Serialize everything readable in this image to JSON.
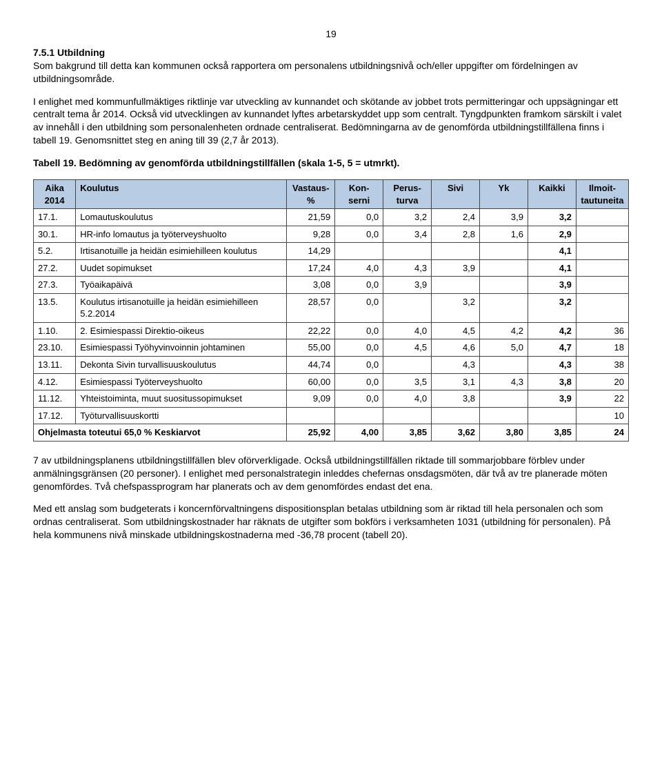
{
  "page_number": "19",
  "section_heading": "7.5.1 Utbildning",
  "para1": "Som bakgrund till detta kan kommunen också rapportera om personalens utbildningsnivå och/eller uppgifter om fördelningen av utbildningsområde.",
  "para2": "I enlighet med kommunfullmäktiges riktlinje var utveckling av kunnandet och skötande av jobbet trots permitteringar och uppsägningar ett centralt tema år 2014. Också vid utvecklingen av kunnandet lyftes arbetarskyddet upp som centralt. Tyngdpunkten framkom särskilt i valet av innehåll i den utbildning som personalenheten ordnade centraliserat. Bedömningarna av de genomförda utbildningstillfällena finns i tabell 19. Genomsnittet steg en aning till 39 (2,7 år 2013).",
  "table_caption": "Tabell 19. Bedömning av genomförda utbildningstillfällen (skala 1-5, 5 = utmrkt).",
  "headers": {
    "aika": "Aika 2014",
    "koulutus": "Koulutus",
    "vastaus": "Vastaus-%",
    "konserni": "Kon-serni",
    "perusturva": "Perus-turva",
    "sivi": "Sivi",
    "yk": "Yk",
    "kaikki": "Kaikki",
    "ilmoit": "Ilmoit-tautuneita"
  },
  "rows": [
    {
      "aika": "17.1.",
      "koulutus": "Lomautuskoulutus",
      "vastaus": "21,59",
      "konserni": "0,0",
      "perusturva": "3,2",
      "sivi": "2,4",
      "yk": "3,9",
      "kaikki": "3,2",
      "ilmoit": ""
    },
    {
      "aika": "30.1.",
      "koulutus": "HR-info lomautus ja työterveyshuolto",
      "vastaus": "9,28",
      "konserni": "0,0",
      "perusturva": "3,4",
      "sivi": "2,8",
      "yk": "1,6",
      "kaikki": "2,9",
      "ilmoit": ""
    },
    {
      "aika": "5.2.",
      "koulutus": "Irtisanotuille ja heidän esimiehilleen koulutus",
      "vastaus": "14,29",
      "konserni": "",
      "perusturva": "",
      "sivi": "",
      "yk": "",
      "kaikki": "4,1",
      "ilmoit": ""
    },
    {
      "aika": "27.2.",
      "koulutus": "Uudet sopimukset",
      "vastaus": "17,24",
      "konserni": "4,0",
      "perusturva": "4,3",
      "sivi": "3,9",
      "yk": "",
      "kaikki": "4,1",
      "ilmoit": ""
    },
    {
      "aika": "27.3.",
      "koulutus": "Työaikapäivä",
      "vastaus": "3,08",
      "konserni": "0,0",
      "perusturva": "3,9",
      "sivi": "",
      "yk": "",
      "kaikki": "3,9",
      "ilmoit": ""
    },
    {
      "aika": "13.5.",
      "koulutus": "Koulutus irtisanotuille ja heidän esimiehilleen 5.2.2014",
      "vastaus": "28,57",
      "konserni": "0,0",
      "perusturva": "",
      "sivi": "3,2",
      "yk": "",
      "kaikki": "3,2",
      "ilmoit": ""
    },
    {
      "aika": "1.10.",
      "koulutus": "2. Esimiespassi Direktio-oikeus",
      "vastaus": "22,22",
      "konserni": "0,0",
      "perusturva": "4,0",
      "sivi": "4,5",
      "yk": "4,2",
      "kaikki": "4,2",
      "ilmoit": "36"
    },
    {
      "aika": "23.10.",
      "koulutus": "Esimiespassi Työhyvinvoinnin johtaminen",
      "vastaus": "55,00",
      "konserni": "0,0",
      "perusturva": "4,5",
      "sivi": "4,6",
      "yk": "5,0",
      "kaikki": "4,7",
      "ilmoit": "18"
    },
    {
      "aika": "13.11.",
      "koulutus": "Dekonta Sivin turvallisuuskoulutus",
      "vastaus": "44,74",
      "konserni": "0,0",
      "perusturva": "",
      "sivi": "4,3",
      "yk": "",
      "kaikki": "4,3",
      "ilmoit": "38"
    },
    {
      "aika": "4.12.",
      "koulutus": "Esimiespassi Työterveyshuolto",
      "vastaus": "60,00",
      "konserni": "0,0",
      "perusturva": "3,5",
      "sivi": "3,1",
      "yk": "4,3",
      "kaikki": "3,8",
      "ilmoit": "20"
    },
    {
      "aika": "11.12.",
      "koulutus": "Yhteistoiminta, muut suositussopimukset",
      "vastaus": "9,09",
      "konserni": "0,0",
      "perusturva": "4,0",
      "sivi": "3,8",
      "yk": "",
      "kaikki": "3,9",
      "ilmoit": "22"
    },
    {
      "aika": "17.12.",
      "koulutus": "Työturvallisuuskortti",
      "vastaus": "",
      "konserni": "",
      "perusturva": "",
      "sivi": "",
      "yk": "",
      "kaikki": "",
      "ilmoit": "10"
    }
  ],
  "summary": {
    "label": "Ohjelmasta toteutui 65,0 % Keskiarvot",
    "vastaus": "25,92",
    "konserni": "4,00",
    "perusturva": "3,85",
    "sivi": "3,62",
    "yk": "3,80",
    "kaikki": "3,85",
    "ilmoit": "24"
  },
  "para3": "7 av utbildningsplanens utbildningstillfällen blev oförverkligade. Också utbildningstillfällen riktade till sommarjobbare förblev under anmälningsgränsen (20 personer). I enlighet med personalstrategin inleddes chefernas onsdagsmöten, där två av tre planerade möten genomfördes. Två chefspassprogram har planerats och av dem genomfördes endast det ena.",
  "para4": "Med ett anslag som budgeterats i koncernförvaltningens dispositionsplan betalas utbildning som är riktad till hela personalen och som ordnas centraliserat. Som utbildningskostnader har räknats de utgifter som bokförs i verksamheten 1031 (utbildning för personalen). På hela kommunens nivå minskade utbildningskostnaderna med -36,78 procent (tabell 20)."
}
